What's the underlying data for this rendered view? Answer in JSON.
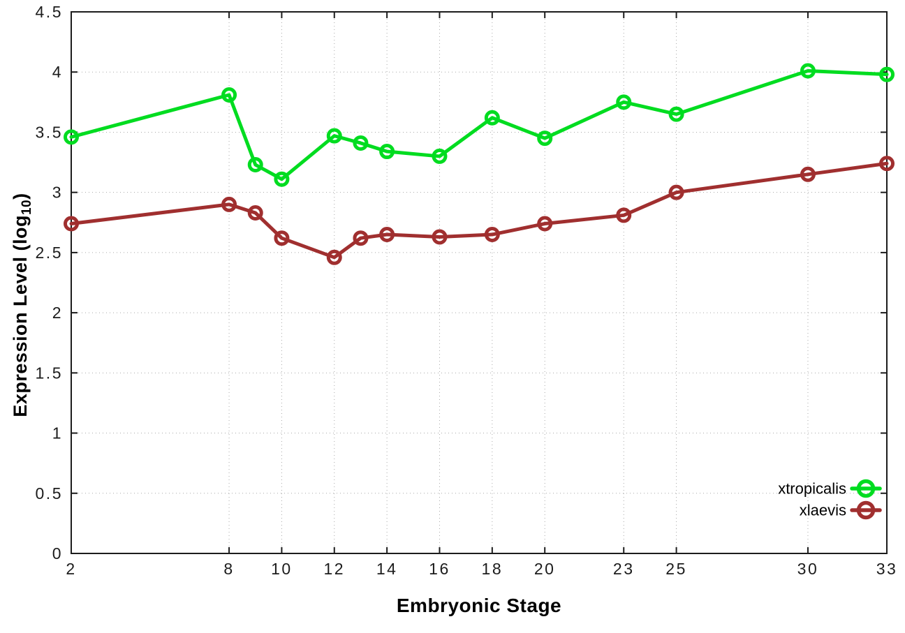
{
  "chart_data": {
    "type": "line",
    "title": "",
    "xlabel": "Embryonic Stage",
    "ylabel": "Expression Level (log10)",
    "ylabel_parts": {
      "prefix": "Expression Level (log",
      "sub": "10",
      "suffix": ")"
    },
    "x": [
      2,
      8,
      9,
      10,
      12,
      13,
      14,
      16,
      18,
      20,
      23,
      25,
      30,
      33
    ],
    "series": [
      {
        "name": "xtropicalis",
        "color": "#00dc20",
        "values": [
          3.46,
          3.81,
          3.23,
          3.11,
          3.47,
          3.41,
          3.34,
          3.3,
          3.62,
          3.45,
          3.75,
          3.65,
          4.01,
          3.98
        ]
      },
      {
        "name": "xlaevis",
        "color": "#a02f2f",
        "values": [
          2.74,
          2.9,
          2.83,
          2.62,
          2.46,
          2.62,
          2.65,
          2.63,
          2.65,
          2.74,
          2.81,
          3.0,
          3.15,
          3.24
        ]
      }
    ],
    "xticks": [
      2,
      8,
      10,
      12,
      14,
      16,
      18,
      20,
      23,
      25,
      30,
      33
    ],
    "xtick_labels": [
      "2",
      "8",
      "10",
      "12",
      "14",
      "16",
      "18",
      "20",
      "23",
      "25",
      "30",
      "33"
    ],
    "yticks": [
      0,
      0.5,
      1,
      1.5,
      2,
      2.5,
      3,
      3.5,
      4,
      4.5
    ],
    "ytick_labels": [
      "0",
      "0.5",
      "1",
      "1.5",
      "2",
      "2.5",
      "3",
      "3.5",
      "4",
      "4.5"
    ],
    "xlim": [
      2,
      33
    ],
    "ylim": [
      0,
      4.5
    ],
    "grid": true,
    "marker": "open-circle",
    "legend_position": "bottom-right",
    "legend": [
      "xtropicalis",
      "xlaevis"
    ]
  },
  "colors": {
    "background": "#ffffff",
    "axis": "#1c1c1c",
    "grid": "#a8a8a8",
    "tick_text": "#1c1c1c",
    "title_text": "#000000",
    "series_green": "#00dc20",
    "series_red": "#a02f2f"
  }
}
